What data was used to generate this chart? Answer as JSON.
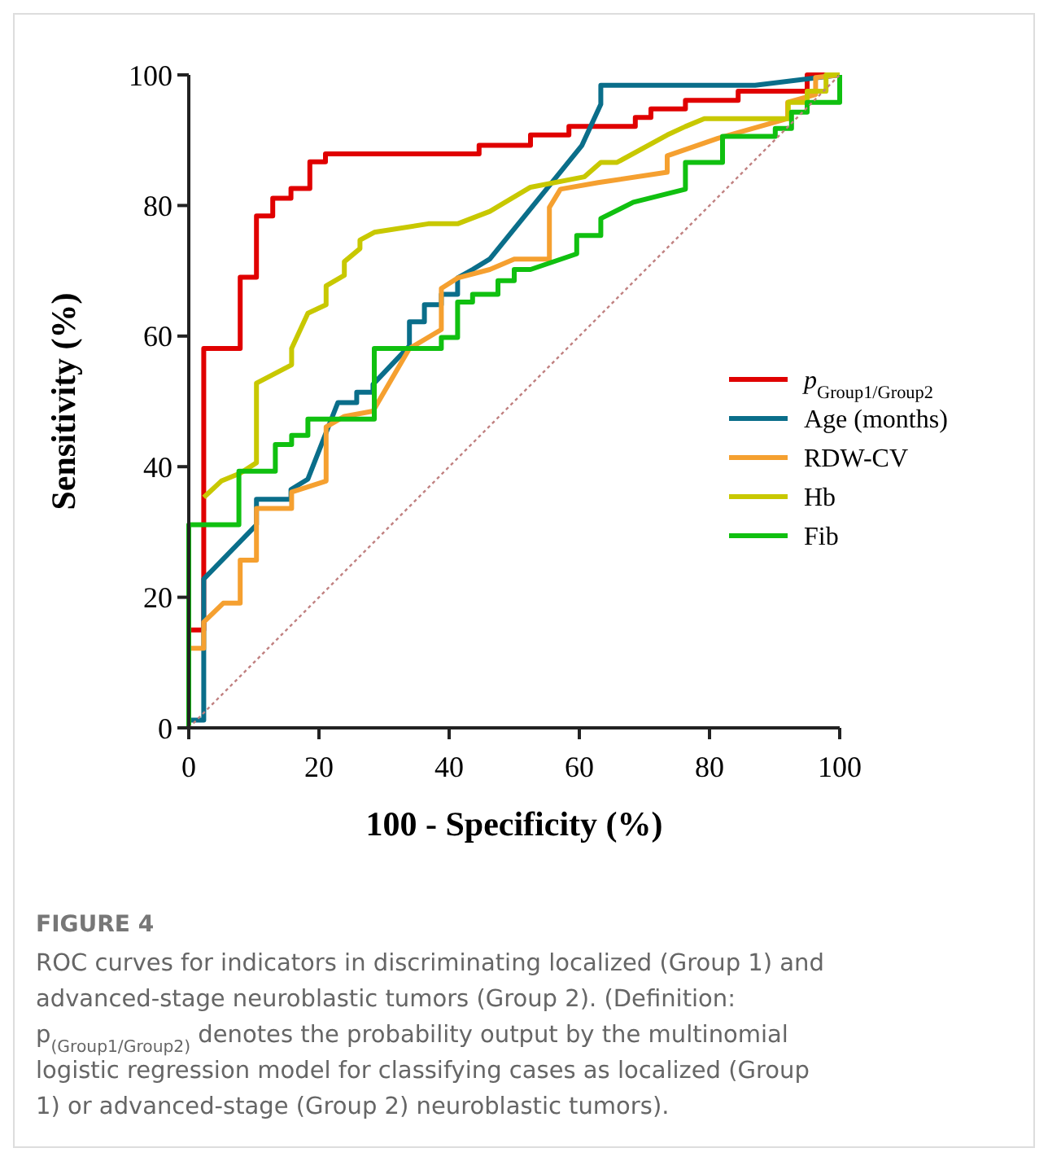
{
  "chart_data": {
    "type": "line",
    "xlabel": "100 - Specificity (%)",
    "ylabel": "Sensitivity (%)",
    "xlim": [
      0,
      100
    ],
    "ylim": [
      0,
      100
    ],
    "xticks": [
      0,
      20,
      40,
      60,
      80,
      100
    ],
    "yticks": [
      0,
      20,
      40,
      60,
      80,
      100
    ],
    "grid": false,
    "legend": "right",
    "series": [
      {
        "name": "p$_{Group1/Group2}$",
        "color": "#e00000",
        "x": [
          0,
          2.3,
          2.3,
          7.9,
          7.9,
          10.4,
          10.4,
          12.9,
          12.9,
          15.7,
          15.7,
          18.6,
          18.6,
          21,
          21,
          44.6,
          44.6,
          52.5,
          52.5,
          58.4,
          58.4,
          68.6,
          68.6,
          71,
          71,
          76.3,
          76.3,
          84.4,
          84.4,
          95,
          95,
          100
        ],
        "values": [
          15,
          15,
          58.1,
          58.1,
          69,
          69,
          78.4,
          78.4,
          81.1,
          81.1,
          82.6,
          82.6,
          86.7,
          86.7,
          87.9,
          87.9,
          89.2,
          89.2,
          90.8,
          90.8,
          92.1,
          92.1,
          93.5,
          93.5,
          94.8,
          94.8,
          96.1,
          96.1,
          97.5,
          97.5,
          100,
          100
        ]
      },
      {
        "name": "Age (months)",
        "color": "#0a6e8a",
        "x": [
          0,
          2.3,
          2.3,
          10.4,
          10.4,
          15.7,
          15.7,
          18.3,
          22.9,
          25.8,
          25.8,
          28.3,
          28.3,
          33.9,
          33.9,
          36.2,
          36.2,
          38.8,
          38.8,
          41.3,
          41.3,
          43.6,
          46.25,
          60.4,
          63.3,
          63.3,
          87,
          100
        ],
        "values": [
          1.2,
          1.2,
          22.8,
          31.1,
          35,
          35,
          36.5,
          38.1,
          49.8,
          49.8,
          51.4,
          51.4,
          52.6,
          58.5,
          62.2,
          62.2,
          64.8,
          64.8,
          66.4,
          66.4,
          68.9,
          70.2,
          71.8,
          89.2,
          95.5,
          98.4,
          98.4,
          100
        ]
      },
      {
        "name": "RDW-CV",
        "color": "#f5a030",
        "x": [
          0,
          2.3,
          2.3,
          5.3,
          7.9,
          7.9,
          10.4,
          10.4,
          15.8,
          15.8,
          21.1,
          21.1,
          23.9,
          28.3,
          33.9,
          38.8,
          38.8,
          41.3,
          46.25,
          50,
          55.4,
          55.4,
          57.1,
          62.9,
          73.5,
          73.5,
          81.3,
          92,
          92,
          96.3,
          96.3,
          100
        ],
        "values": [
          12.2,
          12.2,
          16.2,
          19.1,
          19.1,
          25.7,
          25.7,
          33.6,
          33.6,
          36.1,
          37.8,
          46.1,
          47.7,
          48.5,
          58.1,
          61,
          67.3,
          68.9,
          70.2,
          71.8,
          71.8,
          79.7,
          82.5,
          83.5,
          85.1,
          87.6,
          90.3,
          93.3,
          95.8,
          97,
          99.6,
          100
        ]
      },
      {
        "name": "Hb",
        "color": "#c8c800",
        "x": [
          2.3,
          5,
          7.9,
          10.4,
          10.4,
          15.8,
          15.8,
          18.3,
          21.1,
          21.1,
          23.9,
          23.9,
          26.3,
          26.3,
          28.5,
          36.8,
          41.3,
          46.25,
          52.5,
          60.8,
          63.3,
          65.8,
          73.5,
          76.3,
          79.2,
          92.1,
          92.1,
          95,
          95,
          97.9,
          97.9,
          100
        ],
        "values": [
          35.3,
          37.8,
          39,
          40.6,
          52.8,
          55.6,
          58.1,
          63.5,
          64.8,
          67.7,
          69.3,
          71.4,
          73.4,
          74.7,
          75.9,
          77.2,
          77.2,
          79.1,
          82.8,
          84.4,
          86.6,
          86.6,
          90.8,
          92.1,
          93.3,
          93.3,
          95.8,
          95.8,
          97.5,
          97.5,
          100,
          100
        ]
      },
      {
        "name": "Fib",
        "color": "#10c010",
        "x": [
          0,
          0,
          7.7,
          7.7,
          13.3,
          13.3,
          15.8,
          15.8,
          18.3,
          18.3,
          28.5,
          28.5,
          38.8,
          38.8,
          41.3,
          41.3,
          43.6,
          43.6,
          46.25,
          47.5,
          47.5,
          50,
          50,
          52.5,
          59.6,
          59.6,
          63.3,
          63.3,
          68.3,
          76.3,
          76.3,
          82,
          82,
          90.1,
          90.1,
          92.6,
          92.6,
          95,
          95,
          100,
          100
        ],
        "values": [
          0,
          31.1,
          31.1,
          39.3,
          39.3,
          43.4,
          43.4,
          44.8,
          44.8,
          47.3,
          47.3,
          58.1,
          58.1,
          59.8,
          59.8,
          65.2,
          65.2,
          66.4,
          66.4,
          66.4,
          68.5,
          68.5,
          70.2,
          70.2,
          72.6,
          75.4,
          75.4,
          78,
          80.5,
          82.5,
          86.6,
          86.6,
          90.6,
          90.6,
          91.8,
          91.8,
          94.3,
          94.3,
          95.8,
          95.8,
          100
        ]
      },
      {
        "color": "#c08080",
        "line_style": "dotted",
        "x": [
          0,
          100
        ],
        "values": [
          0,
          100
        ]
      }
    ],
    "annotations": [
      "FIGURE 4",
      "ROC curves for indicators in discriminating localized (Group 1) and advanced-stage neuroblastic tumors (Group 2). (Definition: p$_{(Group1/Group2)}$ denotes the probability output by the multinomial logistic regression model for classifying cases as localized (Group 1) or advanced-stage (Group 2) neuroblastic tumors)."
    ]
  }
}
